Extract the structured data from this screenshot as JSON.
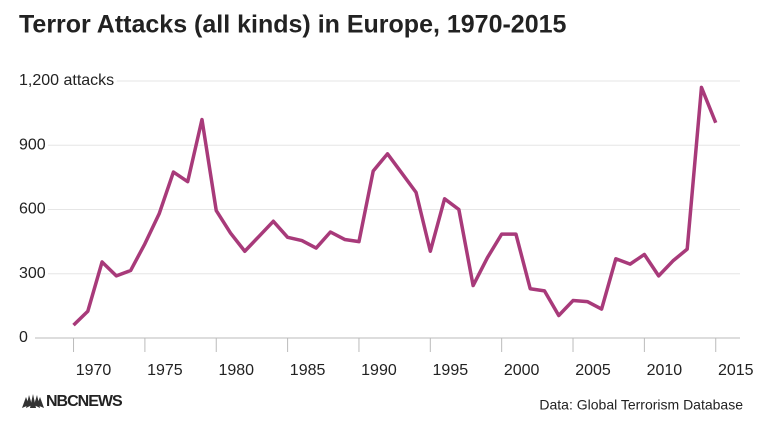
{
  "chart_data": {
    "type": "line",
    "title": "Terror Attacks (all kinds) in Europe, 1970-2015",
    "source": "Data: Global Terrorism Database",
    "logo": "NBCNEWS",
    "x": [
      1970,
      1971,
      1972,
      1973,
      1974,
      1975,
      1976,
      1977,
      1978,
      1979,
      1980,
      1981,
      1982,
      1983,
      1984,
      1985,
      1986,
      1987,
      1988,
      1989,
      1990,
      1991,
      1992,
      1993,
      1994,
      1995,
      1996,
      1997,
      1998,
      1999,
      2000,
      2001,
      2002,
      2003,
      2004,
      2005,
      2006,
      2007,
      2008,
      2009,
      2010,
      2011,
      2012,
      2013,
      2014,
      2015
    ],
    "series": [
      {
        "name": "Terror attacks",
        "color": "#a83a7a",
        "values": [
          60,
          125,
          355,
          290,
          315,
          440,
          580,
          775,
          730,
          1020,
          595,
          490,
          405,
          475,
          545,
          470,
          455,
          420,
          495,
          460,
          450,
          780,
          860,
          770,
          680,
          405,
          650,
          600,
          245,
          375,
          485,
          485,
          230,
          220,
          105,
          175,
          170,
          135,
          370,
          345,
          390,
          290,
          360,
          415,
          1170,
          1005
        ]
      }
    ],
    "xlim": [
      1967.3,
      2016.7
    ],
    "xticks": [
      1970,
      1975,
      1980,
      1985,
      1990,
      1995,
      2000,
      2005,
      2010,
      2015
    ],
    "ylim": [
      0,
      1200
    ],
    "yticks": [
      0,
      300,
      600,
      900,
      {
        "value": 1200,
        "label": "1,200 attacks"
      }
    ],
    "grid": true
  }
}
